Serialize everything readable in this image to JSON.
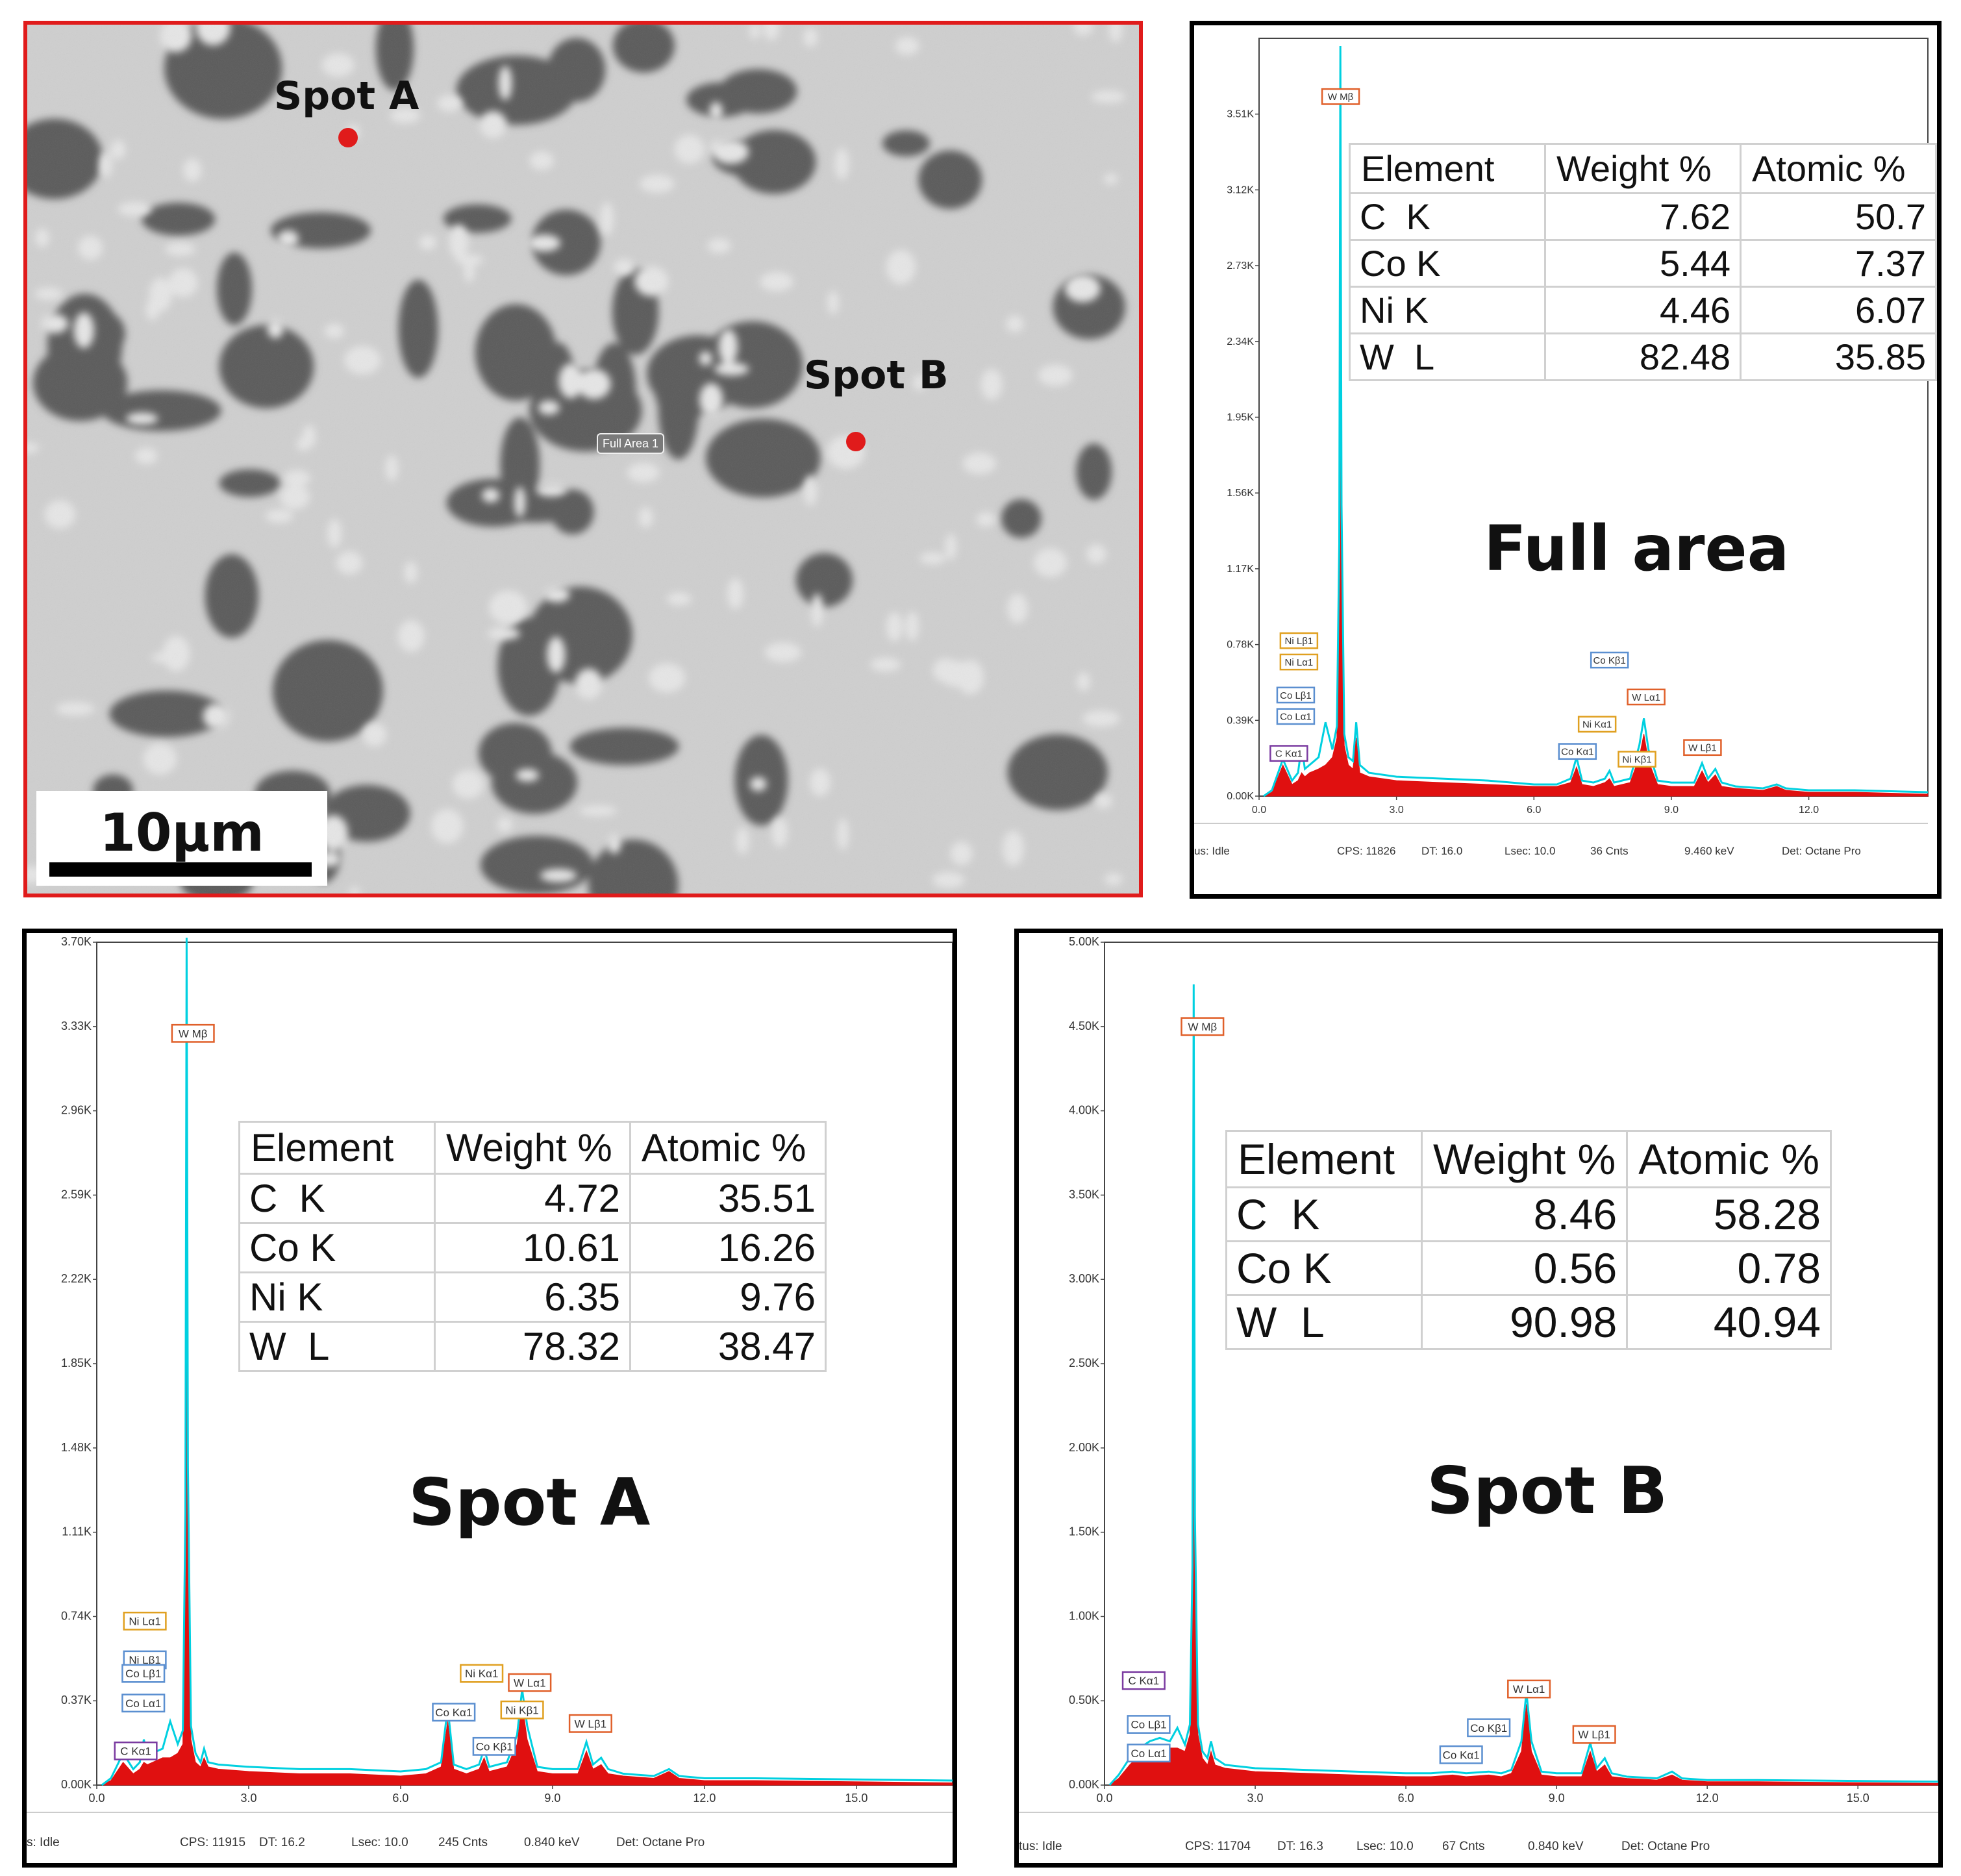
{
  "sem": {
    "spot_a_label": "Spot A",
    "spot_b_label": "Spot B",
    "full_area_tag": "Full Area 1",
    "scale_bar_label": "10µm",
    "spot_marker_color": "#e01b1b",
    "frame_color": "#e01b1b"
  },
  "table_headers": [
    "Element",
    "Weight %",
    "Atomic %"
  ],
  "chart_data": [
    {
      "type": "line",
      "title": "Full area",
      "xlabel": "",
      "ylabel": "",
      "xlim": [
        0,
        14.6
      ],
      "ylim": [
        0,
        3.9
      ],
      "x_ticks": [
        "0.0",
        "3.0",
        "6.0",
        "9.0",
        "12.0"
      ],
      "x_tick_values": [
        0,
        3,
        6,
        9,
        12
      ],
      "y_ticks": [
        "0.00K",
        "0.39K",
        "0.78K",
        "1.17K",
        "1.56K",
        "1.95K",
        "2.34K",
        "2.73K",
        "3.12K",
        "3.51K"
      ],
      "y_tick_values": [
        0,
        0.39,
        0.78,
        1.17,
        1.56,
        1.95,
        2.34,
        2.73,
        3.12,
        3.51
      ],
      "series": [
        {
          "color": "#e01010",
          "fill": true,
          "x": [
            0.1,
            0.28,
            0.52,
            0.72,
            0.85,
            0.93,
            1.0,
            1.1,
            1.2,
            1.3,
            1.45,
            1.6,
            1.7,
            1.75,
            1.775,
            1.8,
            1.86,
            1.95,
            2.05,
            2.12,
            2.2,
            2.4,
            3.0,
            4.0,
            5.0,
            6.0,
            6.5,
            6.8,
            6.93,
            7.05,
            7.3,
            7.55,
            7.65,
            7.75,
            8.1,
            8.3,
            8.4,
            8.5,
            8.7,
            9.0,
            9.5,
            9.67,
            9.8,
            9.96,
            10.1,
            10.4,
            11.0,
            11.3,
            11.5,
            12.0,
            13.0,
            14.6
          ],
          "y": [
            0,
            0.02,
            0.16,
            0.06,
            0.08,
            0.12,
            0.1,
            0.12,
            0.13,
            0.14,
            0.16,
            0.2,
            0.3,
            1.2,
            3.82,
            1.4,
            0.26,
            0.16,
            0.14,
            0.3,
            0.12,
            0.1,
            0.08,
            0.07,
            0.06,
            0.05,
            0.05,
            0.07,
            0.15,
            0.06,
            0.05,
            0.07,
            0.09,
            0.05,
            0.07,
            0.2,
            0.32,
            0.18,
            0.06,
            0.05,
            0.05,
            0.13,
            0.07,
            0.11,
            0.05,
            0.04,
            0.03,
            0.05,
            0.03,
            0.02,
            0.02,
            0.01
          ]
        },
        {
          "color": "#00d0e0",
          "fill": false,
          "x": [
            0.1,
            0.28,
            0.52,
            0.72,
            0.85,
            0.93,
            1.0,
            1.1,
            1.2,
            1.3,
            1.45,
            1.6,
            1.7,
            1.75,
            1.775,
            1.8,
            1.86,
            1.95,
            2.05,
            2.12,
            2.2,
            2.4,
            3.0,
            4.0,
            5.0,
            6.0,
            6.5,
            6.8,
            6.93,
            7.05,
            7.3,
            7.55,
            7.65,
            7.75,
            8.1,
            8.3,
            8.4,
            8.5,
            8.7,
            9.0,
            9.5,
            9.67,
            9.8,
            9.96,
            10.1,
            10.4,
            11.0,
            11.3,
            11.5,
            12.0,
            13.0,
            14.6
          ],
          "y": [
            0,
            0.03,
            0.19,
            0.08,
            0.12,
            0.26,
            0.14,
            0.16,
            0.18,
            0.2,
            0.38,
            0.24,
            0.36,
            1.3,
            3.86,
            1.5,
            0.32,
            0.2,
            0.18,
            0.38,
            0.16,
            0.12,
            0.1,
            0.09,
            0.08,
            0.06,
            0.06,
            0.09,
            0.2,
            0.08,
            0.07,
            0.09,
            0.13,
            0.07,
            0.09,
            0.26,
            0.4,
            0.24,
            0.08,
            0.07,
            0.07,
            0.17,
            0.09,
            0.14,
            0.07,
            0.05,
            0.04,
            0.06,
            0.04,
            0.03,
            0.03,
            0.02
          ]
        }
      ],
      "annotations": [
        {
          "label": "W  Mβ",
          "x": 1.78,
          "y": 3.6,
          "color": "#e0602a"
        },
        {
          "label": "Ni Lβ1",
          "x": 0.87,
          "y": 0.8,
          "color": "#e0a020"
        },
        {
          "label": "Ni Lα1",
          "x": 0.87,
          "y": 0.69,
          "color": "#e0a020"
        },
        {
          "label": "Co Lβ1",
          "x": 0.8,
          "y": 0.52,
          "color": "#5b8fd0"
        },
        {
          "label": "Co Lα1",
          "x": 0.8,
          "y": 0.41,
          "color": "#5b8fd0"
        },
        {
          "label": "C  Kα1",
          "x": 0.65,
          "y": 0.22,
          "color": "#7a3aa0"
        },
        {
          "label": "Co Kβ1",
          "x": 7.65,
          "y": 0.7,
          "color": "#5b8fd0"
        },
        {
          "label": "W  Lα1",
          "x": 8.45,
          "y": 0.51,
          "color": "#e0602a"
        },
        {
          "label": "Ni Kα1",
          "x": 7.38,
          "y": 0.37,
          "color": "#e0a020"
        },
        {
          "label": "Co Kα1",
          "x": 6.95,
          "y": 0.23,
          "color": "#5b8fd0"
        },
        {
          "label": "Ni Kβ1",
          "x": 8.25,
          "y": 0.19,
          "color": "#e0a020"
        },
        {
          "label": "W  Lβ1",
          "x": 9.68,
          "y": 0.25,
          "color": "#e0602a"
        }
      ],
      "table": [
        {
          "element": "C  K",
          "weight": "7.62",
          "atomic": "50.7"
        },
        {
          "element": "Co K",
          "weight": "5.44",
          "atomic": "7.37"
        },
        {
          "element": "Ni K",
          "weight": "4.46",
          "atomic": "6.07"
        },
        {
          "element": "W  L",
          "weight": "82.48",
          "atomic": "35.85"
        }
      ],
      "status": [
        "us: Idle",
        "CPS: 11826",
        "DT: 16.0",
        "Lsec: 10.0",
        "36 Cnts",
        "9.460 keV",
        "Det: Octane Pro"
      ]
    },
    {
      "type": "line",
      "title": "Spot A",
      "xlabel": "",
      "ylabel": "",
      "xlim": [
        0,
        16.9
      ],
      "ylim": [
        0,
        3.7
      ],
      "x_ticks": [
        "0.0",
        "3.0",
        "6.0",
        "9.0",
        "12.0",
        "15.0"
      ],
      "x_tick_values": [
        0,
        3,
        6,
        9,
        12,
        15
      ],
      "y_ticks": [
        "0.00K",
        "0.37K",
        "0.74K",
        "1.11K",
        "1.48K",
        "1.85K",
        "2.22K",
        "2.59K",
        "2.96K",
        "3.33K",
        "3.70K"
      ],
      "y_tick_values": [
        0,
        0.37,
        0.74,
        1.11,
        1.48,
        1.85,
        2.22,
        2.59,
        2.96,
        3.33,
        3.7
      ],
      "series": [
        {
          "color": "#e01010",
          "fill": true,
          "x": [
            0.1,
            0.28,
            0.52,
            0.72,
            0.85,
            0.93,
            1.0,
            1.1,
            1.2,
            1.3,
            1.45,
            1.6,
            1.7,
            1.75,
            1.775,
            1.8,
            1.86,
            1.95,
            2.05,
            2.12,
            2.2,
            2.4,
            3.0,
            4.0,
            5.0,
            6.0,
            6.5,
            6.8,
            6.93,
            7.05,
            7.3,
            7.55,
            7.65,
            7.75,
            8.1,
            8.3,
            8.4,
            8.5,
            8.7,
            9.0,
            9.5,
            9.67,
            9.8,
            9.96,
            10.1,
            10.4,
            11.0,
            11.3,
            11.5,
            12.0,
            13.0,
            16.9
          ],
          "y": [
            0,
            0.02,
            0.1,
            0.05,
            0.07,
            0.1,
            0.09,
            0.1,
            0.11,
            0.12,
            0.12,
            0.14,
            0.18,
            1.1,
            3.68,
            1.3,
            0.2,
            0.1,
            0.08,
            0.12,
            0.08,
            0.07,
            0.06,
            0.05,
            0.05,
            0.04,
            0.05,
            0.08,
            0.28,
            0.07,
            0.05,
            0.07,
            0.12,
            0.06,
            0.08,
            0.18,
            0.36,
            0.2,
            0.06,
            0.05,
            0.05,
            0.15,
            0.07,
            0.09,
            0.05,
            0.04,
            0.03,
            0.06,
            0.03,
            0.02,
            0.02,
            0.01
          ]
        },
        {
          "color": "#00d0e0",
          "fill": false,
          "x": [
            0.1,
            0.28,
            0.52,
            0.72,
            0.85,
            0.93,
            1.0,
            1.1,
            1.2,
            1.3,
            1.45,
            1.6,
            1.7,
            1.75,
            1.775,
            1.8,
            1.86,
            1.95,
            2.05,
            2.12,
            2.2,
            2.4,
            3.0,
            4.0,
            5.0,
            6.0,
            6.5,
            6.8,
            6.93,
            7.05,
            7.3,
            7.55,
            7.65,
            7.75,
            8.1,
            8.3,
            8.4,
            8.5,
            8.7,
            9.0,
            9.5,
            9.67,
            9.8,
            9.96,
            10.1,
            10.4,
            11.0,
            11.3,
            11.5,
            12.0,
            13.0,
            16.9
          ],
          "y": [
            0,
            0.03,
            0.14,
            0.07,
            0.1,
            0.2,
            0.13,
            0.14,
            0.15,
            0.16,
            0.28,
            0.18,
            0.24,
            1.2,
            3.72,
            1.4,
            0.26,
            0.14,
            0.1,
            0.16,
            0.1,
            0.09,
            0.08,
            0.07,
            0.07,
            0.06,
            0.07,
            0.1,
            0.34,
            0.09,
            0.07,
            0.09,
            0.16,
            0.08,
            0.1,
            0.22,
            0.42,
            0.26,
            0.08,
            0.07,
            0.07,
            0.19,
            0.09,
            0.12,
            0.07,
            0.05,
            0.04,
            0.07,
            0.04,
            0.03,
            0.03,
            0.02
          ]
        }
      ],
      "annotations": [
        {
          "label": "W  Mβ",
          "x": 1.9,
          "y": 3.3,
          "color": "#e0602a"
        },
        {
          "label": "Ni Lα1",
          "x": 0.95,
          "y": 0.72,
          "color": "#e0a020"
        },
        {
          "label": "Ni Lβ1",
          "x": 0.95,
          "y": 0.55,
          "color": "#5b8fd0"
        },
        {
          "label": "Co Lβ1",
          "x": 0.92,
          "y": 0.49,
          "color": "#5b8fd0"
        },
        {
          "label": "Co Lα1",
          "x": 0.92,
          "y": 0.36,
          "color": "#5b8fd0"
        },
        {
          "label": "C  Kα1",
          "x": 0.77,
          "y": 0.15,
          "color": "#7a3aa0"
        },
        {
          "label": "Ni Kα1",
          "x": 7.6,
          "y": 0.49,
          "color": "#e0a020"
        },
        {
          "label": "W  Lα1",
          "x": 8.55,
          "y": 0.45,
          "color": "#e0602a"
        },
        {
          "label": "Co Kα1",
          "x": 7.05,
          "y": 0.32,
          "color": "#5b8fd0"
        },
        {
          "label": "Ni Kβ1",
          "x": 8.4,
          "y": 0.33,
          "color": "#e0a020"
        },
        {
          "label": "Co Kβ1",
          "x": 7.85,
          "y": 0.17,
          "color": "#5b8fd0"
        },
        {
          "label": "W  Lβ1",
          "x": 9.75,
          "y": 0.27,
          "color": "#e0602a"
        }
      ],
      "table": [
        {
          "element": "C  K",
          "weight": "4.72",
          "atomic": "35.51"
        },
        {
          "element": "Co K",
          "weight": "10.61",
          "atomic": "16.26"
        },
        {
          "element": "Ni K",
          "weight": "6.35",
          "atomic": "9.76"
        },
        {
          "element": "W  L",
          "weight": "78.32",
          "atomic": "38.47"
        }
      ],
      "status": [
        "s: Idle",
        "CPS: 11915",
        "DT: 16.2",
        "Lsec: 10.0",
        "245 Cnts",
        "0.840 keV",
        "Det: Octane Pro"
      ]
    },
    {
      "type": "line",
      "title": "Spot B",
      "xlabel": "",
      "ylabel": "",
      "xlim": [
        0,
        16.6
      ],
      "ylim": [
        0,
        5.0
      ],
      "x_ticks": [
        "0.0",
        "3.0",
        "6.0",
        "9.0",
        "12.0",
        "15.0"
      ],
      "x_tick_values": [
        0,
        3,
        6,
        9,
        12,
        15
      ],
      "y_ticks": [
        "0.00K",
        "0.50K",
        "1.00K",
        "1.50K",
        "2.00K",
        "2.50K",
        "3.00K",
        "3.50K",
        "4.00K",
        "4.50K",
        "5.00K"
      ],
      "y_tick_values": [
        0,
        0.5,
        1.0,
        1.5,
        2.0,
        2.5,
        3.0,
        3.5,
        4.0,
        4.5,
        5.0
      ],
      "series": [
        {
          "color": "#e01010",
          "fill": true,
          "x": [
            0.1,
            0.28,
            0.5,
            0.7,
            0.9,
            1.1,
            1.3,
            1.45,
            1.6,
            1.7,
            1.75,
            1.775,
            1.8,
            1.86,
            1.95,
            2.05,
            2.12,
            2.2,
            2.4,
            3.0,
            4.0,
            5.0,
            6.0,
            6.5,
            6.93,
            7.2,
            7.65,
            7.9,
            8.1,
            8.3,
            8.4,
            8.5,
            8.7,
            9.0,
            9.5,
            9.67,
            9.8,
            9.96,
            10.1,
            10.4,
            11.0,
            11.3,
            11.5,
            12.0,
            13.0,
            16.6
          ],
          "y": [
            0,
            0.04,
            0.12,
            0.18,
            0.22,
            0.24,
            0.22,
            0.22,
            0.2,
            0.3,
            1.2,
            4.7,
            1.5,
            0.3,
            0.16,
            0.12,
            0.2,
            0.12,
            0.1,
            0.08,
            0.07,
            0.06,
            0.05,
            0.05,
            0.06,
            0.05,
            0.06,
            0.05,
            0.07,
            0.2,
            0.48,
            0.2,
            0.06,
            0.05,
            0.05,
            0.2,
            0.08,
            0.12,
            0.05,
            0.04,
            0.03,
            0.06,
            0.03,
            0.02,
            0.02,
            0.01
          ]
        },
        {
          "color": "#00d0e0",
          "fill": false,
          "x": [
            0.1,
            0.28,
            0.5,
            0.7,
            0.9,
            1.1,
            1.3,
            1.45,
            1.6,
            1.7,
            1.75,
            1.775,
            1.8,
            1.86,
            1.95,
            2.05,
            2.12,
            2.2,
            2.4,
            3.0,
            4.0,
            5.0,
            6.0,
            6.5,
            6.93,
            7.2,
            7.65,
            7.9,
            8.1,
            8.3,
            8.4,
            8.5,
            8.7,
            9.0,
            9.5,
            9.67,
            9.8,
            9.96,
            10.1,
            10.4,
            11.0,
            11.3,
            11.5,
            12.0,
            13.0,
            16.6
          ],
          "y": [
            0,
            0.06,
            0.16,
            0.22,
            0.26,
            0.28,
            0.26,
            0.34,
            0.24,
            0.36,
            1.3,
            4.75,
            1.6,
            0.36,
            0.2,
            0.16,
            0.26,
            0.16,
            0.12,
            0.1,
            0.09,
            0.08,
            0.07,
            0.07,
            0.08,
            0.07,
            0.08,
            0.07,
            0.09,
            0.26,
            0.55,
            0.26,
            0.08,
            0.07,
            0.07,
            0.25,
            0.1,
            0.16,
            0.07,
            0.05,
            0.04,
            0.08,
            0.04,
            0.03,
            0.03,
            0.02
          ]
        }
      ],
      "annotations": [
        {
          "label": "W  Mβ",
          "x": 1.95,
          "y": 4.5,
          "color": "#e0602a"
        },
        {
          "label": "C  Kα1",
          "x": 0.78,
          "y": 0.62,
          "color": "#7a3aa0"
        },
        {
          "label": "Co Lβ1",
          "x": 0.88,
          "y": 0.36,
          "color": "#5b8fd0"
        },
        {
          "label": "Co Lα1",
          "x": 0.88,
          "y": 0.19,
          "color": "#5b8fd0"
        },
        {
          "label": "W  Lα1",
          "x": 8.45,
          "y": 0.57,
          "color": "#e0602a"
        },
        {
          "label": "Co Kβ1",
          "x": 7.65,
          "y": 0.34,
          "color": "#5b8fd0"
        },
        {
          "label": "Co Kα1",
          "x": 7.1,
          "y": 0.18,
          "color": "#5b8fd0"
        },
        {
          "label": "W  Lβ1",
          "x": 9.75,
          "y": 0.3,
          "color": "#e0602a"
        }
      ],
      "table": [
        {
          "element": "C  K",
          "weight": "8.46",
          "atomic": "58.28"
        },
        {
          "element": "Co K",
          "weight": "0.56",
          "atomic": "0.78"
        },
        {
          "element": "W  L",
          "weight": "90.98",
          "atomic": "40.94"
        }
      ],
      "status": [
        "tus: Idle",
        "CPS: 11704",
        "DT: 16.3",
        "Lsec: 10.0",
        "67 Cnts",
        "0.840 keV",
        "Det: Octane Pro"
      ]
    }
  ]
}
